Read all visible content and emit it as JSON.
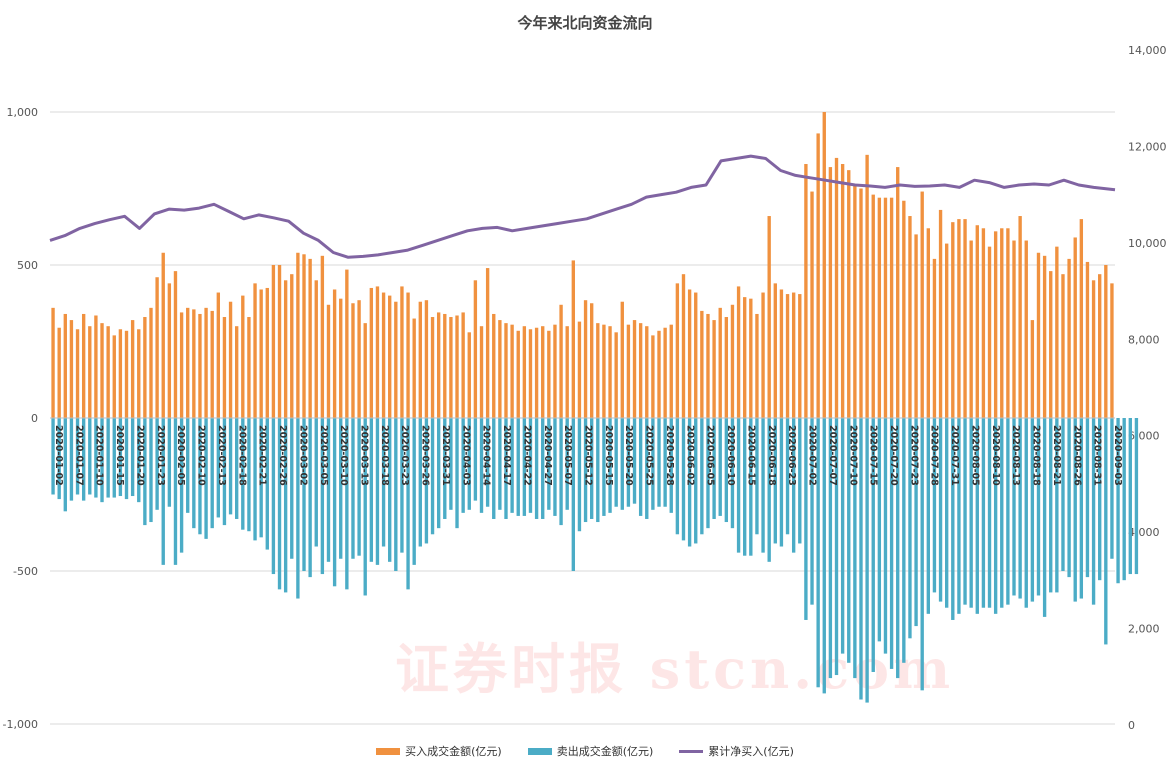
{
  "chart_data": {
    "type": "bar",
    "title": "今年来北向资金流向",
    "watermark": "证券时报 stcn.com",
    "left_axis": {
      "ylim": [
        -1000,
        1000
      ],
      "ticks": [
        -1000,
        -500,
        0,
        500,
        1000
      ],
      "tick_labels": [
        "-1,000",
        "-500",
        "0",
        "500",
        "1,000"
      ]
    },
    "right_axis": {
      "ylim": [
        0,
        14000
      ],
      "ticks": [
        0,
        2000,
        4000,
        6000,
        8000,
        10000,
        12000,
        14000
      ],
      "tick_labels": [
        "0",
        "2,000",
        "4,000",
        "6,000",
        "8,000",
        "10,000",
        "12,000",
        "14,000"
      ]
    },
    "grid": true,
    "legend_position": "bottom",
    "x_tick_labels": [
      "2020-01-02",
      "2020-01-07",
      "2020-01-10",
      "2020-01-15",
      "2020-01-20",
      "2020-01-23",
      "2020-02-05",
      "2020-02-10",
      "2020-02-13",
      "2020-02-18",
      "2020-02-21",
      "2020-02-26",
      "2020-03-02",
      "2020-03-05",
      "2020-03-10",
      "2020-03-13",
      "2020-03-18",
      "2020-03-23",
      "2020-03-26",
      "2020-03-31",
      "2020-04-03",
      "2020-04-14",
      "2020-04-17",
      "2020-04-22",
      "2020-04-27",
      "2020-05-07",
      "2020-05-12",
      "2020-05-15",
      "2020-05-20",
      "2020-05-25",
      "2020-05-28",
      "2020-06-02",
      "2020-06-05",
      "2020-06-10",
      "2020-06-15",
      "2020-06-18",
      "2020-06-23",
      "2020-07-02",
      "2020-07-07",
      "2020-07-10",
      "2020-07-15",
      "2020-07-20",
      "2020-07-23",
      "2020-07-28",
      "2020-07-31",
      "2020-08-05",
      "2020-08-10",
      "2020-08-13",
      "2020-08-18",
      "2020-08-21",
      "2020-08-26",
      "2020-08-31",
      "2020-09-03"
    ],
    "series": [
      {
        "name": "买入成交金额(亿元)",
        "axis": "left",
        "color": "#f0913f",
        "values": [
          360,
          295,
          340,
          320,
          290,
          340,
          300,
          335,
          310,
          300,
          270,
          290,
          285,
          320,
          290,
          330,
          360,
          460,
          540,
          440,
          480,
          345,
          360,
          355,
          340,
          360,
          350,
          410,
          330,
          380,
          300,
          400,
          330,
          440,
          420,
          425,
          500,
          500,
          450,
          470,
          540,
          535,
          520,
          450,
          530,
          370,
          420,
          390,
          485,
          375,
          385,
          310,
          425,
          430,
          410,
          400,
          380,
          430,
          410,
          325,
          380,
          385,
          330,
          345,
          340,
          330,
          335,
          345,
          280,
          450,
          300,
          490,
          340,
          320,
          310,
          305,
          285,
          300,
          290,
          295,
          300,
          285,
          305,
          370,
          300,
          515,
          315,
          385,
          375,
          310,
          305,
          300,
          280,
          380,
          305,
          320,
          310,
          300,
          270,
          285,
          295,
          305,
          440,
          470,
          420,
          410,
          350,
          340,
          320,
          360,
          330,
          370,
          430,
          395,
          390,
          340,
          410,
          660,
          440,
          420,
          405,
          410,
          405,
          830,
          740,
          930,
          1000,
          820,
          850,
          830,
          810,
          760,
          750,
          860,
          730,
          720,
          720,
          720,
          820,
          710,
          660,
          600,
          740,
          620,
          520,
          680,
          570,
          640,
          650,
          650,
          580,
          630,
          620,
          560,
          610,
          620,
          620,
          580,
          660,
          580,
          320,
          540,
          530,
          480,
          560,
          470,
          520,
          590,
          650,
          510,
          450,
          470,
          500,
          440
        ]
      },
      {
        "name": "卖出成交金额(亿元)",
        "axis": "left",
        "color": "#4bacc6",
        "values": [
          -250,
          -265,
          -305,
          -270,
          -250,
          -270,
          -250,
          -260,
          -275,
          -260,
          -260,
          -255,
          -265,
          -255,
          -275,
          -350,
          -340,
          -300,
          -480,
          -290,
          -480,
          -440,
          -310,
          -360,
          -380,
          -395,
          -360,
          -325,
          -350,
          -315,
          -330,
          -365,
          -370,
          -400,
          -390,
          -430,
          -510,
          -560,
          -570,
          -460,
          -590,
          -500,
          -520,
          -420,
          -510,
          -470,
          -550,
          -460,
          -560,
          -460,
          -450,
          -580,
          -470,
          -480,
          -420,
          -470,
          -500,
          -440,
          -560,
          -480,
          -420,
          -410,
          -380,
          -360,
          -330,
          -300,
          -360,
          -310,
          -300,
          -270,
          -310,
          -290,
          -330,
          -300,
          -330,
          -310,
          -320,
          -320,
          -310,
          -330,
          -330,
          -300,
          -320,
          -350,
          -300,
          -500,
          -370,
          -340,
          -330,
          -340,
          -320,
          -310,
          -290,
          -300,
          -290,
          -280,
          -320,
          -330,
          -300,
          -290,
          -290,
          -310,
          -380,
          -400,
          -420,
          -410,
          -380,
          -360,
          -330,
          -320,
          -340,
          -360,
          -440,
          -450,
          -450,
          -380,
          -440,
          -470,
          -410,
          -420,
          -380,
          -440,
          -410,
          -660,
          -610,
          -880,
          -900,
          -850,
          -840,
          -770,
          -800,
          -850,
          -920,
          -930,
          -830,
          -730,
          -770,
          -820,
          -850,
          -800,
          -720,
          -680,
          -890,
          -640,
          -570,
          -600,
          -620,
          -660,
          -640,
          -610,
          -620,
          -640,
          -620,
          -620,
          -640,
          -620,
          -610,
          -580,
          -590,
          -620,
          -600,
          -580,
          -650,
          -570,
          -570,
          -500,
          -520,
          -600,
          -590,
          -520,
          -610,
          -530,
          -740,
          -460,
          -540,
          -530,
          -510,
          -510
        ]
      },
      {
        "name": "累计净买入(亿元)",
        "axis": "right",
        "color": "#8064a2",
        "x_fraction": [
          0,
          0.014,
          0.028,
          0.042,
          0.056,
          0.07,
          0.084,
          0.098,
          0.112,
          0.126,
          0.14,
          0.154,
          0.168,
          0.182,
          0.196,
          0.21,
          0.224,
          0.238,
          0.252,
          0.266,
          0.28,
          0.294,
          0.308,
          0.322,
          0.336,
          0.35,
          0.364,
          0.378,
          0.392,
          0.406,
          0.42,
          0.434,
          0.448,
          0.462,
          0.476,
          0.49,
          0.504,
          0.518,
          0.532,
          0.546,
          0.56,
          0.574,
          0.588,
          0.602,
          0.616,
          0.63,
          0.644,
          0.658,
          0.672,
          0.686,
          0.7,
          0.714,
          0.728,
          0.742,
          0.756,
          0.77,
          0.784,
          0.798,
          0.812,
          0.826,
          0.84,
          0.854,
          0.868,
          0.882,
          0.896,
          0.91,
          0.924,
          0.938,
          0.952,
          0.966,
          0.98,
          1
        ],
        "values": [
          10050,
          10150,
          10300,
          10400,
          10480,
          10550,
          10300,
          10600,
          10700,
          10680,
          10720,
          10800,
          10650,
          10500,
          10580,
          10520,
          10450,
          10200,
          10050,
          9800,
          9700,
          9720,
          9750,
          9800,
          9850,
          9950,
          10050,
          10150,
          10250,
          10300,
          10320,
          10250,
          10300,
          10350,
          10400,
          10450,
          10500,
          10600,
          10700,
          10800,
          10950,
          11000,
          11050,
          11150,
          11200,
          11700,
          11750,
          11800,
          11750,
          11500,
          11400,
          11350,
          11300,
          11250,
          11200,
          11180,
          11150,
          11200,
          11170,
          11180,
          11200,
          11150,
          11300,
          11250,
          11150,
          11200,
          11220,
          11200,
          11300,
          11200,
          11150,
          11100
        ]
      }
    ]
  }
}
